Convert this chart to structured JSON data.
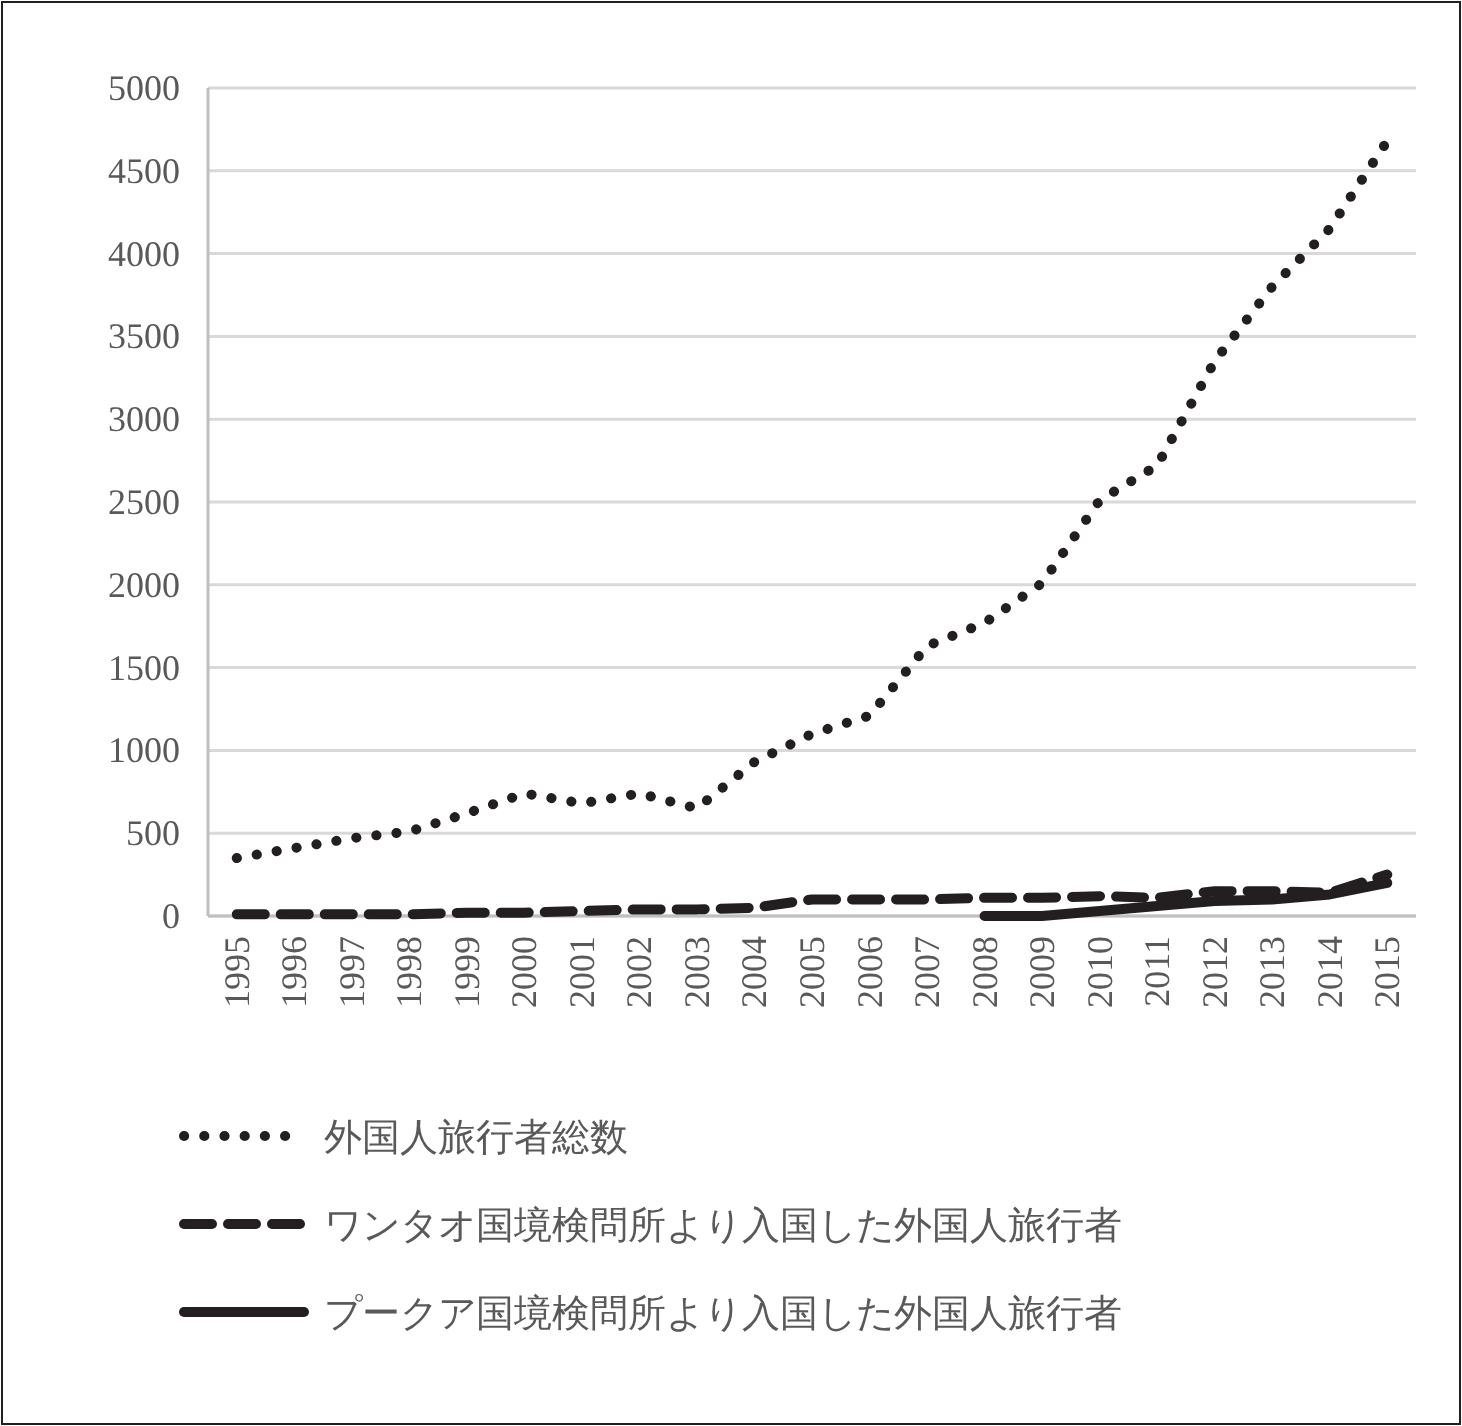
{
  "chart_data": {
    "type": "line",
    "categories": [
      "1995",
      "1996",
      "1997",
      "1998",
      "1999",
      "2000",
      "2001",
      "2002",
      "2003",
      "2004",
      "2005",
      "2006",
      "2007",
      "2008",
      "2009",
      "2010",
      "2011",
      "2012",
      "2013",
      "2014",
      "2015"
    ],
    "series": [
      {
        "name": "外国人旅行者総数",
        "color": "#231f20",
        "line_style": "dotted",
        "values": [
          350,
          410,
          470,
          510,
          620,
          740,
          680,
          740,
          650,
          930,
          1100,
          1210,
          1630,
          1770,
          2010,
          2510,
          2720,
          3350,
          3800,
          4150,
          4680
        ]
      },
      {
        "name": "ワンタオ国境検問所より入国した外国人旅行者",
        "color": "#231f20",
        "line_style": "dashed",
        "values": [
          10,
          10,
          10,
          10,
          20,
          20,
          30,
          40,
          40,
          50,
          100,
          100,
          100,
          110,
          110,
          120,
          110,
          150,
          150,
          140,
          250
        ]
      },
      {
        "name": "プークア国境検問所より入国した外国人旅行者",
        "color": "#231f20",
        "line_style": "solid",
        "values": [
          null,
          null,
          null,
          null,
          null,
          null,
          null,
          null,
          null,
          null,
          null,
          null,
          null,
          0,
          0,
          30,
          60,
          90,
          100,
          130,
          200
        ]
      }
    ],
    "ylim": [
      0,
      5000
    ],
    "yticks": [
      0,
      500,
      1000,
      1500,
      2000,
      2500,
      3000,
      3500,
      4000,
      4500,
      5000
    ],
    "grid": "y",
    "legend": "bottom"
  }
}
